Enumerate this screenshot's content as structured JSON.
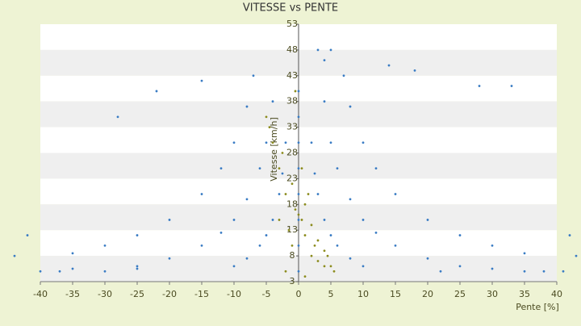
{
  "chart_data": {
    "type": "scatter",
    "title": "VITESSE vs PENTE",
    "x_label": "Pente [%]",
    "y_label": "Vitesse [km/h]",
    "xlim": [
      -40,
      40
    ],
    "xticks": [
      -40,
      -35,
      -30,
      -25,
      -20,
      -15,
      -10,
      -5,
      0,
      5,
      10,
      15,
      20,
      25,
      30,
      35,
      40
    ],
    "ylim": [
      3,
      53
    ],
    "yticks": [
      3,
      8,
      13,
      18,
      23,
      28,
      33,
      38,
      43,
      48,
      53
    ],
    "grid": true,
    "series": [
      {
        "color": "#3a7cc4",
        "x": [
          2,
          2.5,
          3,
          4,
          5,
          6,
          8,
          10,
          -2,
          -2.5,
          -3,
          -4,
          -5,
          -6,
          -8,
          -10,
          4,
          5,
          6,
          8,
          10,
          12,
          15,
          20,
          25,
          -4,
          -5,
          -6,
          -8,
          -10,
          -12,
          -15,
          -20,
          -25,
          7,
          8,
          10,
          12,
          15,
          20,
          25,
          30,
          35,
          -7,
          -8,
          -10,
          -12,
          -15,
          -20,
          -25,
          -30,
          -35,
          -40,
          -37,
          -35,
          -30,
          -25,
          -42,
          -44,
          -28,
          -22,
          -15,
          28,
          33,
          18,
          14,
          0,
          0,
          0,
          0,
          0,
          0,
          0,
          0,
          42,
          43,
          41,
          38,
          35,
          30,
          22,
          3,
          4,
          5
        ],
        "y": [
          30,
          24,
          20,
          15,
          12,
          10,
          7.5,
          6,
          30,
          24,
          20,
          15,
          12,
          10,
          7.5,
          6,
          38,
          30,
          25,
          19,
          15,
          12.5,
          10,
          7.5,
          6,
          38,
          30,
          25,
          19,
          15,
          12.5,
          10,
          7.5,
          6,
          43,
          37,
          30,
          25,
          20,
          15,
          12,
          10,
          8.5,
          43,
          37,
          30,
          25,
          20,
          15,
          12,
          10,
          8.5,
          5,
          5,
          5.5,
          5,
          5.5,
          12,
          8,
          35,
          40,
          42,
          41,
          41,
          44,
          45,
          5,
          10,
          15,
          20,
          25,
          30,
          35,
          40,
          12,
          8,
          5,
          5,
          5,
          5.5,
          5,
          48,
          46,
          48
        ]
      },
      {
        "color": "#8c8c1e",
        "x": [
          -1,
          0.5,
          1,
          -2,
          2,
          3,
          4,
          5,
          -3,
          -4,
          -5,
          -1,
          1,
          2,
          -0.5,
          3,
          4,
          -2,
          1,
          0,
          -1.5,
          2.5,
          4.5,
          5.5,
          -3,
          -2.5,
          -4.5,
          1.5,
          0.5,
          -0.5
        ],
        "y": [
          10,
          15,
          12,
          20,
          8,
          7,
          9,
          6,
          25,
          30,
          35,
          22,
          18,
          14,
          40,
          11,
          6,
          5,
          4,
          16,
          13,
          10,
          8,
          5,
          15,
          28,
          33,
          20,
          25,
          17
        ]
      }
    ]
  }
}
